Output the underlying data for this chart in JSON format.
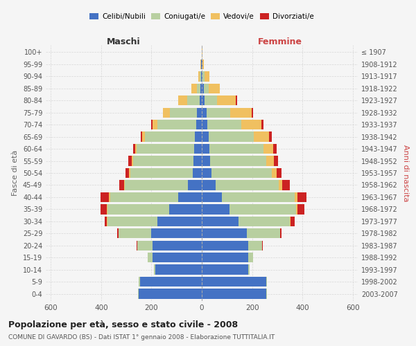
{
  "age_groups": [
    "0-4",
    "5-9",
    "10-14",
    "15-19",
    "20-24",
    "25-29",
    "30-34",
    "35-39",
    "40-44",
    "45-49",
    "50-54",
    "55-59",
    "60-64",
    "65-69",
    "70-74",
    "75-79",
    "80-84",
    "85-89",
    "90-94",
    "95-99",
    "100+"
  ],
  "birth_years": [
    "2003-2007",
    "1998-2002",
    "1993-1997",
    "1988-1992",
    "1983-1987",
    "1978-1982",
    "1973-1977",
    "1968-1972",
    "1963-1967",
    "1958-1962",
    "1953-1957",
    "1948-1952",
    "1943-1947",
    "1938-1942",
    "1933-1937",
    "1928-1932",
    "1923-1927",
    "1918-1922",
    "1913-1917",
    "1908-1912",
    "≤ 1907"
  ],
  "maschi_celibi": [
    250,
    245,
    185,
    195,
    195,
    200,
    175,
    130,
    95,
    55,
    35,
    32,
    30,
    27,
    22,
    18,
    8,
    5,
    3,
    2,
    0
  ],
  "maschi_coniugati": [
    3,
    5,
    5,
    20,
    60,
    130,
    200,
    245,
    270,
    250,
    250,
    240,
    230,
    200,
    155,
    110,
    50,
    15,
    5,
    2,
    0
  ],
  "maschi_vedovi": [
    0,
    0,
    0,
    1,
    2,
    2,
    2,
    2,
    3,
    3,
    3,
    5,
    5,
    10,
    20,
    25,
    35,
    20,
    5,
    2,
    0
  ],
  "maschi_divorziati": [
    0,
    0,
    0,
    0,
    2,
    5,
    10,
    25,
    35,
    20,
    15,
    15,
    8,
    5,
    5,
    0,
    0,
    0,
    0,
    0,
    0
  ],
  "femmine_celibi": [
    255,
    255,
    185,
    185,
    185,
    180,
    145,
    110,
    80,
    55,
    38,
    32,
    30,
    28,
    22,
    18,
    10,
    8,
    3,
    2,
    0
  ],
  "femmine_coniugati": [
    3,
    5,
    5,
    20,
    55,
    130,
    205,
    265,
    290,
    250,
    240,
    225,
    215,
    180,
    135,
    95,
    50,
    20,
    8,
    2,
    0
  ],
  "femmine_vedovi": [
    0,
    0,
    0,
    0,
    1,
    2,
    3,
    5,
    10,
    15,
    20,
    30,
    40,
    60,
    80,
    85,
    75,
    45,
    20,
    5,
    2
  ],
  "femmine_divorziati": [
    0,
    0,
    0,
    0,
    2,
    5,
    15,
    28,
    35,
    30,
    18,
    15,
    12,
    10,
    8,
    5,
    5,
    0,
    0,
    0,
    0
  ],
  "color_celibi": "#4472c4",
  "color_coniugati": "#b8cfa0",
  "color_vedovi": "#f0c060",
  "color_divorziati": "#cc2222",
  "xlim": 620,
  "title": "Popolazione per età, sesso e stato civile - 2008",
  "subtitle": "COMUNE DI GAVARDO (BS) - Dati ISTAT 1° gennaio 2008 - Elaborazione TUTTITALIA.IT",
  "ylabel": "Fasce di età",
  "ylabel_right": "Anni di nascita",
  "label_maschi": "Maschi",
  "label_femmine": "Femmine",
  "legend_celibi": "Celibi/Nubili",
  "legend_coniugati": "Coniugati/e",
  "legend_vedovi": "Vedovi/e",
  "legend_divorziati": "Divorziati/e",
  "bg_color": "#f5f5f5",
  "grid_color": "#cccccc"
}
